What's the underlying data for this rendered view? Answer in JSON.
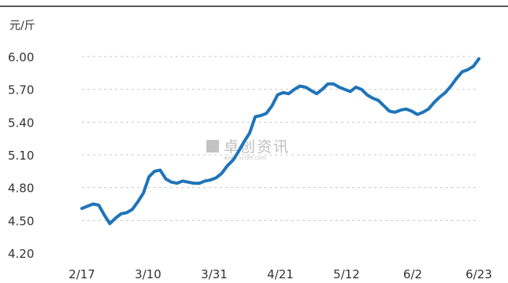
{
  "chart_data": {
    "type": "line",
    "unit_label": "元/斤",
    "xlabel": "",
    "ylabel": "",
    "ylim": [
      4.2,
      6.0
    ],
    "yticks": [
      "6.00",
      "5.70",
      "5.40",
      "5.10",
      "4.80",
      "4.50",
      "4.20"
    ],
    "xticks": [
      "2/17",
      "3/10",
      "3/31",
      "4/21",
      "5/12",
      "6/2",
      "6/23"
    ],
    "grid": true,
    "legend": "none",
    "series": [
      {
        "color": "#1f74b8",
        "values": [
          4.61,
          4.63,
          4.65,
          4.64,
          4.55,
          4.47,
          4.52,
          4.56,
          4.57,
          4.6,
          4.67,
          4.75,
          4.9,
          4.95,
          4.96,
          4.88,
          4.85,
          4.84,
          4.86,
          4.85,
          4.84,
          4.84,
          4.86,
          4.87,
          4.89,
          4.93,
          5.0,
          5.05,
          5.13,
          5.22,
          5.3,
          5.45,
          5.46,
          5.48,
          5.55,
          5.65,
          5.67,
          5.66,
          5.7,
          5.73,
          5.72,
          5.69,
          5.66,
          5.7,
          5.75,
          5.75,
          5.72,
          5.7,
          5.68,
          5.72,
          5.7,
          5.65,
          5.62,
          5.6,
          5.55,
          5.5,
          5.49,
          5.51,
          5.52,
          5.5,
          5.47,
          5.49,
          5.52,
          5.58,
          5.63,
          5.67,
          5.73,
          5.8,
          5.86,
          5.88,
          5.91,
          5.98
        ]
      }
    ]
  },
  "watermark": {
    "text": "卓创资讯",
    "sub": "www.sci99.com"
  }
}
